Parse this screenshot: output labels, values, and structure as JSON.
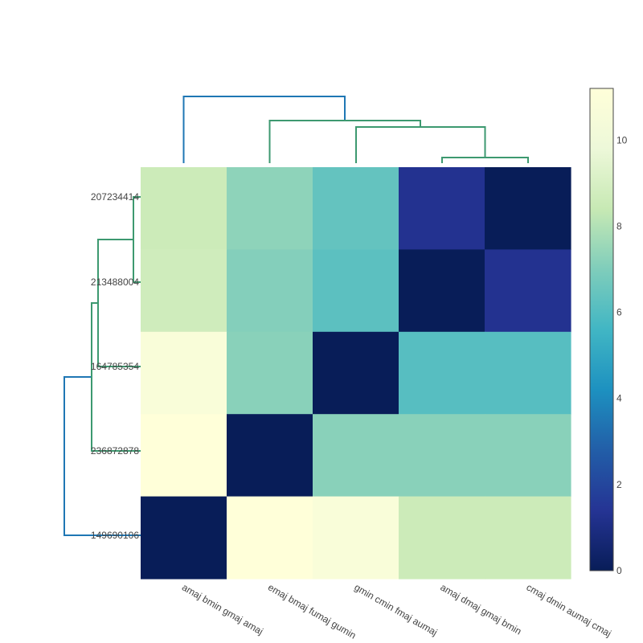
{
  "chart_data": {
    "type": "heatmap",
    "title": "",
    "xlabel": "",
    "ylabel": "",
    "x_categories": [
      "amaj bmin gmaj amaj",
      "emaj bmaj fumaj gumin",
      "gmin cmin fmaj aumaj",
      "amaj dmaj gmaj bmin",
      "cmaj dmin aumaj cmaj"
    ],
    "y_categories": [
      "207234414",
      "213488004",
      "164785354",
      "236872878",
      "149690106"
    ],
    "z": [
      [
        8.6,
        7.3,
        6.4,
        1.3,
        0.0
      ],
      [
        8.7,
        7.1,
        6.2,
        0.0,
        1.3
      ],
      [
        10.7,
        7.2,
        0.0,
        6.1,
        6.1
      ],
      [
        11.2,
        0.0,
        7.2,
        7.2,
        7.2
      ],
      [
        0.0,
        11.2,
        10.7,
        8.6,
        8.6
      ]
    ],
    "colorscale": "YlGnBu",
    "zlim": [
      0,
      11.2
    ],
    "colorbar_ticks": [
      0,
      2,
      4,
      6,
      8,
      10
    ],
    "dendrogram_colors": {
      "root": "#1f77b4",
      "cluster": "#3d9970"
    }
  }
}
